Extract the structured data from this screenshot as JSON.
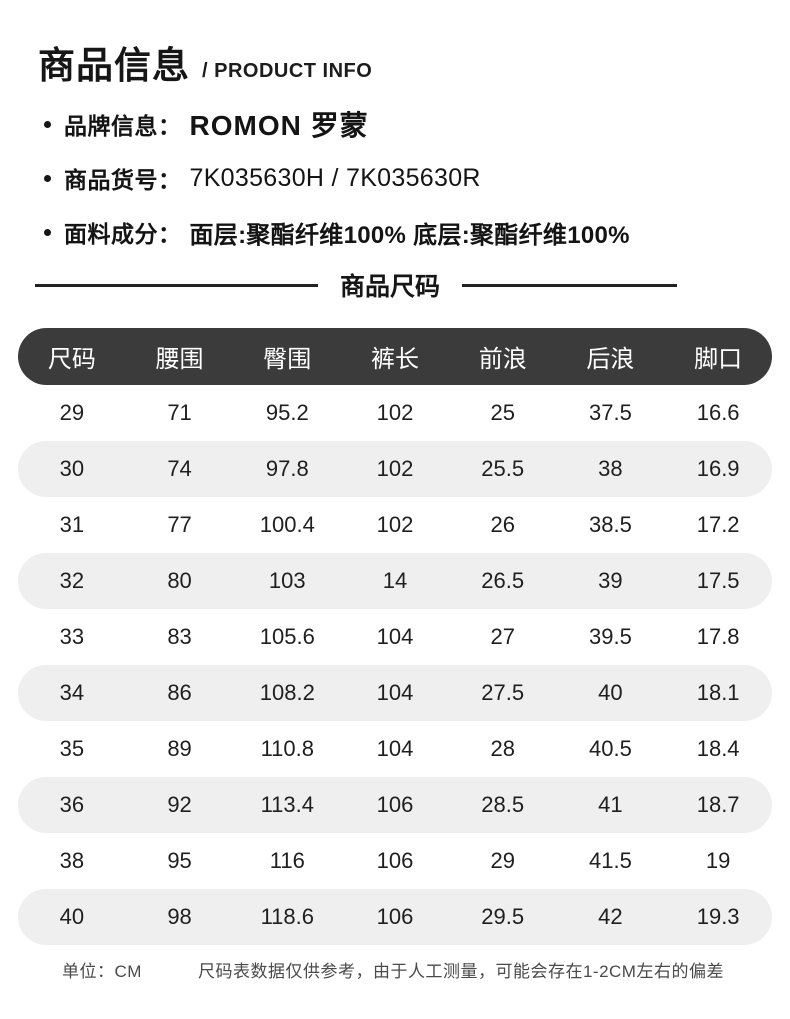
{
  "header": {
    "title": "商品信息",
    "subtitle": "/ PRODUCT INFO"
  },
  "info_items": [
    {
      "label": "品牌信息：",
      "value": "ROMON 罗蒙"
    },
    {
      "label": "商品货号：",
      "value": "7K035630H / 7K035630R"
    },
    {
      "label": "面料成分：",
      "value": "面层:聚酯纤维100% 底层:聚酯纤维100%"
    }
  ],
  "size_section": {
    "title": "商品尺码"
  },
  "chart_data": {
    "type": "table",
    "title": "商品尺码",
    "headers": [
      "尺码",
      "腰围",
      "臀围",
      "裤长",
      "前浪",
      "后浪",
      "脚口"
    ],
    "rows": [
      [
        "29",
        "71",
        "95.2",
        "102",
        "25",
        "37.5",
        "16.6"
      ],
      [
        "30",
        "74",
        "97.8",
        "102",
        "25.5",
        "38",
        "16.9"
      ],
      [
        "31",
        "77",
        "100.4",
        "102",
        "26",
        "38.5",
        "17.2"
      ],
      [
        "32",
        "80",
        "103",
        "14",
        "26.5",
        "39",
        "17.5"
      ],
      [
        "33",
        "83",
        "105.6",
        "104",
        "27",
        "39.5",
        "17.8"
      ],
      [
        "34",
        "86",
        "108.2",
        "104",
        "27.5",
        "40",
        "18.1"
      ],
      [
        "35",
        "89",
        "110.8",
        "104",
        "28",
        "40.5",
        "18.4"
      ],
      [
        "36",
        "92",
        "113.4",
        "106",
        "28.5",
        "41",
        "18.7"
      ],
      [
        "38",
        "95",
        "116",
        "106",
        "29",
        "41.5",
        "19"
      ],
      [
        "40",
        "98",
        "118.6",
        "106",
        "29.5",
        "42",
        "19.3"
      ]
    ]
  },
  "footer": {
    "unit_label": "单位：CM",
    "disclaimer": "尺码表数据仅供参考，由于人工测量，可能会存在1-2CM左右的偏差"
  },
  "colors": {
    "header_bar": "#3b3b3b",
    "stripe": "#efefef",
    "text": "#161616"
  }
}
